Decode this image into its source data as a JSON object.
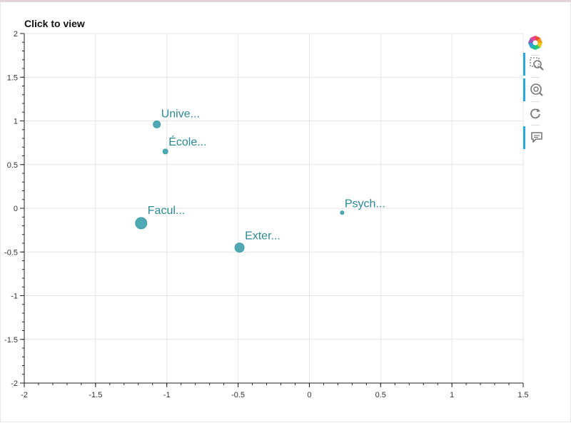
{
  "title": "Click to view",
  "toolbar": {
    "items": [
      {
        "icon": "bokeh-logo-icon",
        "active": false
      },
      {
        "icon": "box-zoom-icon",
        "active": true
      },
      {
        "icon": "wheel-zoom-icon",
        "active": true
      },
      {
        "icon": "reset-icon",
        "active": false
      },
      {
        "icon": "hover-icon",
        "active": true
      }
    ]
  },
  "colors": {
    "point": "#3d9fab",
    "label": "#2a8a96",
    "grid": "#e6e6e6",
    "axis": "#222222",
    "toolbar_active": "#26aae1"
  },
  "chart_data": {
    "type": "scatter",
    "title": "Click to view",
    "xlim": [
      -2,
      1.5
    ],
    "ylim": [
      -2,
      2
    ],
    "xticks": [
      -2,
      -1.5,
      -1,
      -0.5,
      0,
      0.5,
      1,
      1.5
    ],
    "yticks": [
      -2,
      -1.5,
      -1,
      -0.5,
      0,
      0.5,
      1,
      1.5,
      2
    ],
    "xtick_labels": [
      "-2",
      "-1.5",
      "-1",
      "-0.5",
      "0",
      "0.5",
      "1",
      "1.5"
    ],
    "ytick_labels": [
      "-2",
      "-1.5",
      "-1",
      "-0.5",
      "0",
      "0.5",
      "1",
      "1.5",
      "2"
    ],
    "grid": true,
    "points": [
      {
        "label": "Unive...",
        "x": -1.07,
        "y": 0.96,
        "size": 5
      },
      {
        "label": "École...",
        "x": -1.01,
        "y": 0.65,
        "size": 3.5
      },
      {
        "label": "Facul...",
        "x": -1.18,
        "y": -0.17,
        "size": 8
      },
      {
        "label": "Exter...",
        "x": -0.49,
        "y": -0.45,
        "size": 6.5
      },
      {
        "label": "Psych...",
        "x": 0.23,
        "y": -0.05,
        "size": 2.5
      }
    ]
  }
}
